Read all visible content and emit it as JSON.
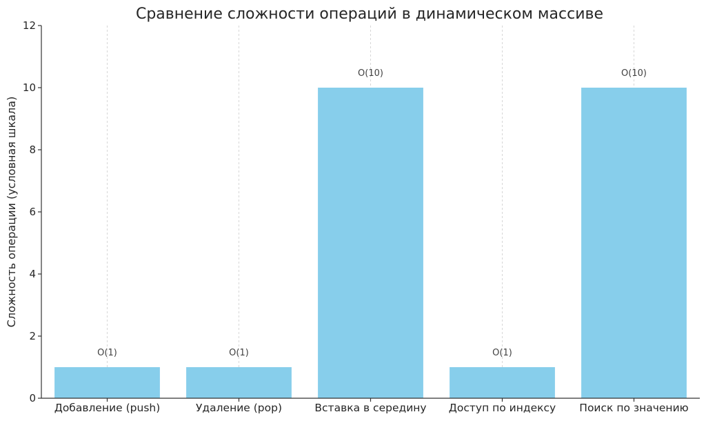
{
  "chart_data": {
    "type": "bar",
    "title": "Сравнение сложности операций в динамическом массиве",
    "xlabel": "",
    "ylabel": "Сложность операции (условная шкала)",
    "categories": [
      "Добавление (push)",
      "Удаление (pop)",
      "Вставка в середину",
      "Доступ по индексу",
      "Поиск по значению"
    ],
    "values": [
      1,
      1,
      10,
      1,
      10
    ],
    "data_labels": [
      "O(1)",
      "O(1)",
      "O(10)",
      "O(1)",
      "O(10)"
    ],
    "ylim": [
      0,
      12
    ],
    "yticks": [
      "0",
      "2",
      "4",
      "6",
      "8",
      "10",
      "12"
    ],
    "grid": "vertical dashed",
    "bar_color": "#87ceeb"
  }
}
